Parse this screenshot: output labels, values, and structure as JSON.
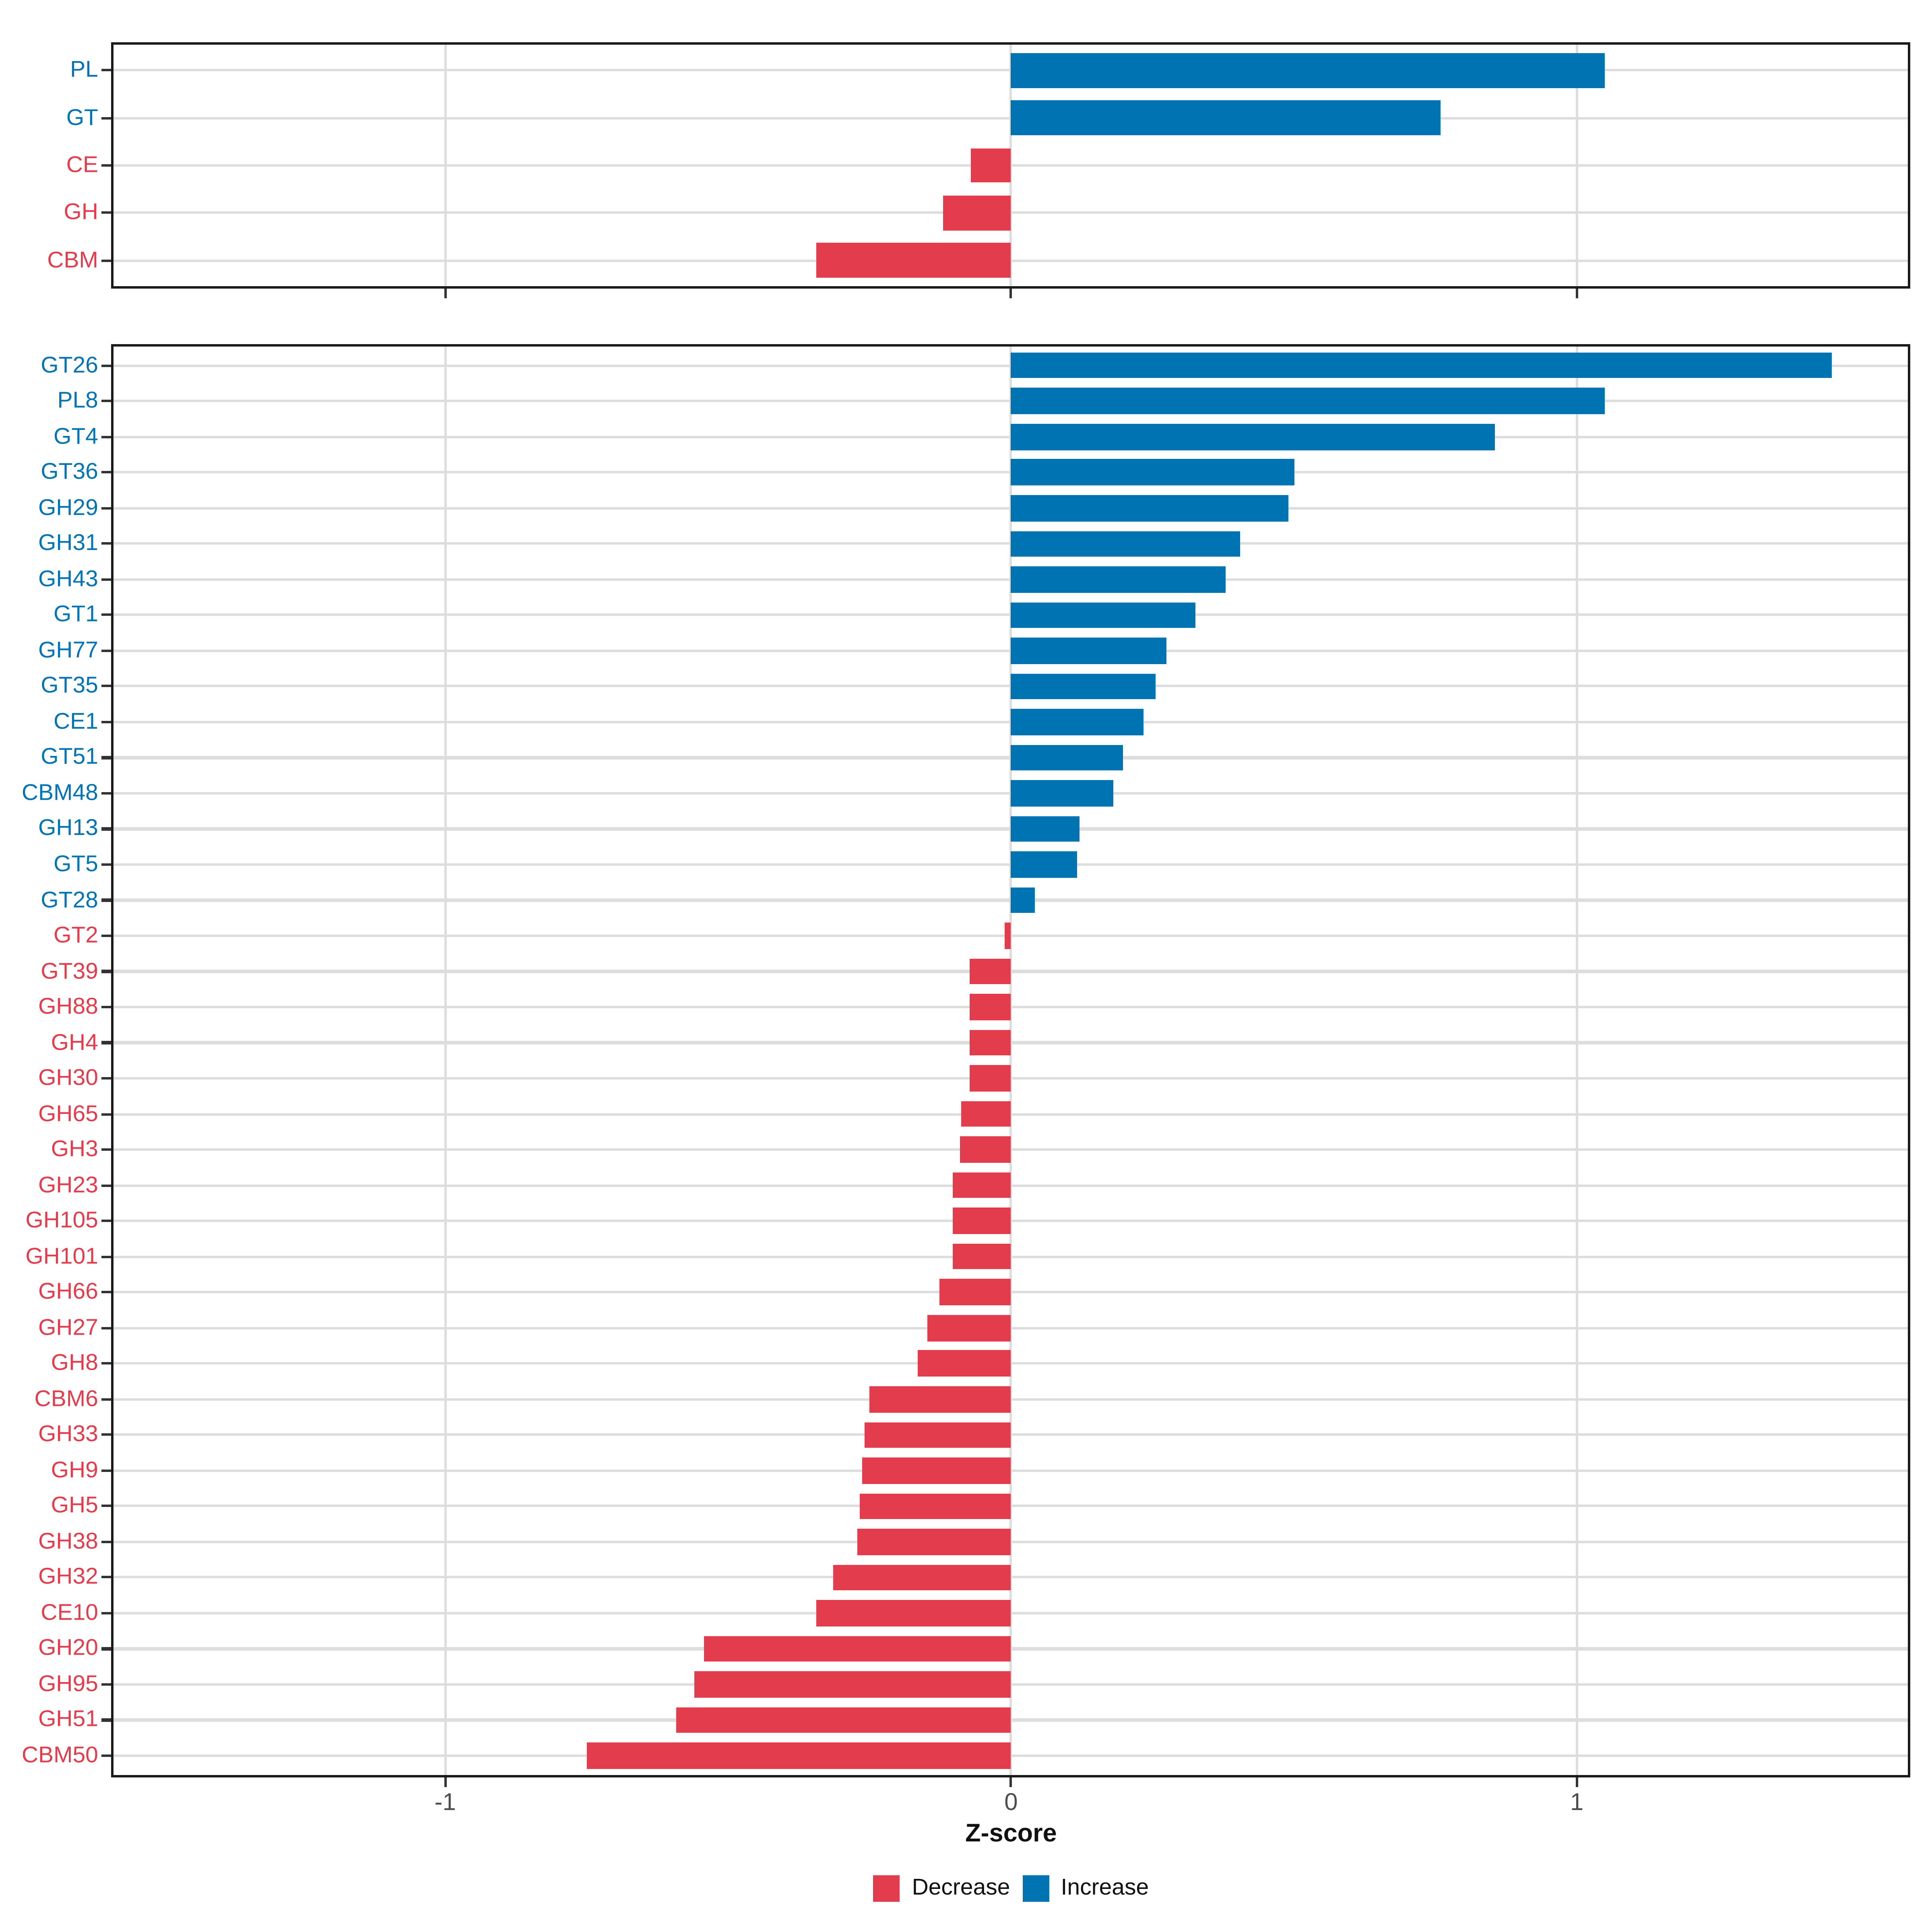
{
  "page": {
    "background": "#ffffff"
  },
  "colors": {
    "increase": "#0073B2",
    "decrease": "#E23C4D",
    "gridline": "#DDDDDD",
    "panel_border": "#1A1A1A",
    "tick_mark": "#333333",
    "tick_label": "#4D4D4D",
    "axis_title": "#111111"
  },
  "axis": {
    "xlabel": "Z-score",
    "tick_labels": [
      "-1",
      "0",
      "1"
    ],
    "tick_values": [
      -1,
      0,
      1
    ],
    "xlim": [
      -1.59,
      1.59
    ]
  },
  "legend": {
    "position": "bottom",
    "items": [
      {
        "label": "Decrease",
        "color": "#E23C4D"
      },
      {
        "label": "Increase",
        "color": "#0073B2"
      }
    ]
  },
  "chart_data": [
    {
      "type": "bar",
      "orientation": "horizontal",
      "panel": "top-cazyme-classes",
      "title": "",
      "xlabel": "Z-score",
      "ylabel": "",
      "xlim": [
        -1.59,
        1.59
      ],
      "grid": true,
      "categories": [
        "PL",
        "GT",
        "CE",
        "GH",
        "CBM"
      ],
      "values": [
        1.05,
        0.76,
        -0.07,
        -0.12,
        -0.345
      ],
      "bar_colors": [
        "#0073B2",
        "#0073B2",
        "#E23C4D",
        "#E23C4D",
        "#E23C4D"
      ]
    },
    {
      "type": "bar",
      "orientation": "horizontal",
      "panel": "bottom-cazyme-families",
      "title": "",
      "xlabel": "Z-score",
      "ylabel": "",
      "xlim": [
        -1.59,
        1.59
      ],
      "grid": true,
      "categories": [
        "GT26",
        "PL8",
        "GT4",
        "GT36",
        "GH29",
        "GH31",
        "GH43",
        "GT1",
        "GH77",
        "GT35",
        "CE1",
        "GT51",
        "CBM48",
        "GH13",
        "GT5",
        "GT28",
        "GT2",
        "GT39",
        "GH88",
        "GH4",
        "GH30",
        "GH65",
        "GH3",
        "GH23",
        "GH105",
        "GH101",
        "GH66",
        "GH27",
        "GH8",
        "CBM6",
        "GH33",
        "GH9",
        "GH5",
        "GH38",
        "GH32",
        "CE10",
        "GH20",
        "GH95",
        "GH51",
        "CBM50"
      ],
      "values": [
        1.45,
        1.05,
        0.855,
        0.5,
        0.49,
        0.405,
        0.38,
        0.325,
        0.275,
        0.255,
        0.235,
        0.197,
        0.18,
        0.12,
        0.117,
        0.042,
        -0.012,
        -0.073,
        -0.073,
        -0.073,
        -0.074,
        -0.089,
        -0.091,
        -0.103,
        -0.103,
        -0.104,
        -0.127,
        -0.147,
        -0.166,
        -0.251,
        -0.258,
        -0.264,
        -0.268,
        -0.272,
        -0.314,
        -0.345,
        -0.542,
        -0.56,
        -0.591,
        -0.75
      ],
      "bar_colors": [
        "#0073B2",
        "#0073B2",
        "#0073B2",
        "#0073B2",
        "#0073B2",
        "#0073B2",
        "#0073B2",
        "#0073B2",
        "#0073B2",
        "#0073B2",
        "#0073B2",
        "#0073B2",
        "#0073B2",
        "#0073B2",
        "#0073B2",
        "#0073B2",
        "#E23C4D",
        "#E23C4D",
        "#E23C4D",
        "#E23C4D",
        "#E23C4D",
        "#E23C4D",
        "#E23C4D",
        "#E23C4D",
        "#E23C4D",
        "#E23C4D",
        "#E23C4D",
        "#E23C4D",
        "#E23C4D",
        "#E23C4D",
        "#E23C4D",
        "#E23C4D",
        "#E23C4D",
        "#E23C4D",
        "#E23C4D",
        "#E23C4D",
        "#E23C4D",
        "#E23C4D",
        "#E23C4D",
        "#E23C4D"
      ]
    }
  ]
}
